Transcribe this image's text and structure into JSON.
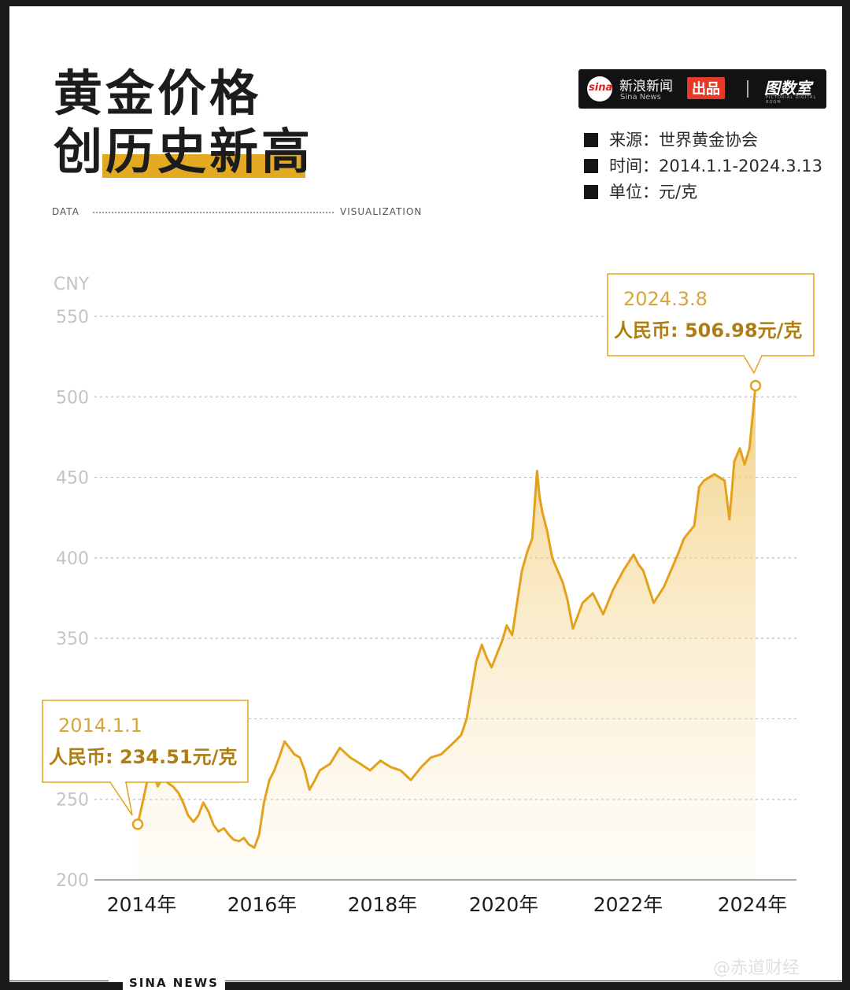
{
  "title": {
    "line1": "黄金价格",
    "line2": "创历史新高"
  },
  "subhead": {
    "left": "DATA",
    "right": "VISUALIZATION"
  },
  "brand": {
    "logo_text": "sina",
    "name": "新浪新闻",
    "sub": "Sina News",
    "tag": "出品",
    "partner": "图数室",
    "partner_sub": "PICTORIAL DIGITAL ROOM"
  },
  "meta": {
    "source": "来源：世界黄金协会",
    "period": "时间：2014.1.1-2024.3.13",
    "unit": "单位：元/克"
  },
  "footer": {
    "label": "SINA NEWS",
    "watermark": "@赤道财经"
  },
  "colors": {
    "line": "#e3a11c",
    "annotation": "#b07d12",
    "title_highlight": "#e3a922"
  },
  "chart_data": {
    "type": "area",
    "ylabel": "CNY",
    "ylim": [
      200,
      560
    ],
    "yticks": [
      200,
      250,
      300,
      350,
      400,
      450,
      500,
      550
    ],
    "ytick_labels": [
      "200",
      "250",
      "",
      "350",
      "400",
      "450",
      "500",
      "550"
    ],
    "xlim": [
      2014.0,
      2024.6
    ],
    "xticks": [
      2014,
      2016,
      2018,
      2020,
      2022,
      2024
    ],
    "xtick_labels": [
      "2014年",
      "2016年",
      "2018年",
      "2020年",
      "2022年",
      "2024年"
    ],
    "grid": true,
    "x": [
      2014.0,
      2014.08,
      2014.16,
      2014.25,
      2014.33,
      2014.42,
      2014.5,
      2014.58,
      2014.67,
      2014.75,
      2014.83,
      2014.92,
      2015.0,
      2015.08,
      2015.17,
      2015.25,
      2015.33,
      2015.42,
      2015.5,
      2015.58,
      2015.67,
      2015.75,
      2015.83,
      2015.92,
      2016.0,
      2016.08,
      2016.17,
      2016.25,
      2016.33,
      2016.42,
      2016.5,
      2016.58,
      2016.67,
      2016.75,
      2016.83,
      2016.92,
      2017.0,
      2017.17,
      2017.33,
      2017.5,
      2017.67,
      2017.83,
      2018.0,
      2018.17,
      2018.33,
      2018.5,
      2018.67,
      2018.83,
      2019.0,
      2019.17,
      2019.33,
      2019.42,
      2019.5,
      2019.58,
      2019.67,
      2019.75,
      2019.83,
      2020.0,
      2020.08,
      2020.17,
      2020.25,
      2020.33,
      2020.42,
      2020.5,
      2020.58,
      2020.62,
      2020.67,
      2020.75,
      2020.83,
      2020.92,
      2021.0,
      2021.08,
      2021.17,
      2021.25,
      2021.33,
      2021.5,
      2021.67,
      2021.83,
      2022.0,
      2022.17,
      2022.25,
      2022.33,
      2022.5,
      2022.67,
      2022.83,
      2022.92,
      2023.0,
      2023.17,
      2023.25,
      2023.33,
      2023.5,
      2023.67,
      2023.75,
      2023.83,
      2023.92,
      2024.0,
      2024.08,
      2024.18
    ],
    "values": [
      234.51,
      248,
      262,
      268,
      258,
      264,
      260,
      258,
      254,
      248,
      240,
      236,
      240,
      248,
      242,
      234,
      230,
      232,
      228,
      225,
      224,
      226,
      222,
      220,
      228,
      248,
      262,
      268,
      276,
      286,
      282,
      278,
      276,
      268,
      256,
      262,
      268,
      272,
      282,
      276,
      272,
      268,
      274,
      270,
      268,
      262,
      270,
      276,
      278,
      284,
      290,
      300,
      318,
      336,
      346,
      338,
      332,
      348,
      358,
      352,
      372,
      392,
      404,
      412,
      454,
      438,
      428,
      416,
      400,
      392,
      385,
      374,
      356,
      364,
      372,
      378,
      365,
      380,
      392,
      402,
      396,
      392,
      372,
      382,
      396,
      404,
      412,
      420,
      444,
      448,
      452,
      448,
      424,
      460,
      468,
      458,
      468,
      506.98
    ],
    "annotations": [
      {
        "date": "2014.1.1",
        "label": "人民币: 234.51元/克",
        "x": 2014.0,
        "y": 234.51
      },
      {
        "date": "2024.3.8",
        "label": "人民币: 506.98元/克",
        "x": 2024.18,
        "y": 506.98
      }
    ]
  }
}
